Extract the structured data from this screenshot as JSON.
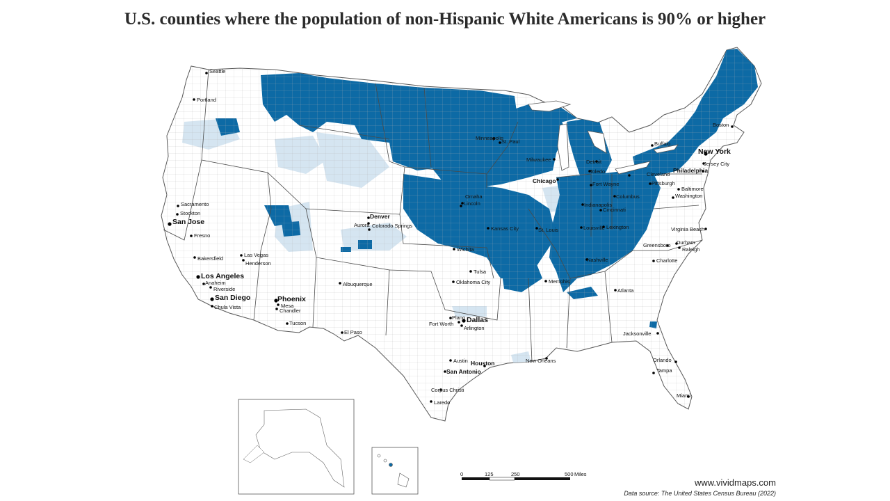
{
  "title": "U.S. counties where the population of non-Hispanic White Americans is 90% or higher",
  "colors": {
    "highlight": "#0d6aa5",
    "light": "#d5e5f1",
    "land": "#ffffff",
    "border": "#8a8a8a",
    "state_border": "#555555"
  },
  "cities": [
    {
      "name": "Seattle",
      "size": "small"
    },
    {
      "name": "Portland",
      "size": "small"
    },
    {
      "name": "Sacramento",
      "size": "small"
    },
    {
      "name": "Stockton",
      "size": "small"
    },
    {
      "name": "San Jose",
      "size": "big"
    },
    {
      "name": "Fresno",
      "size": "small"
    },
    {
      "name": "Bakersfield",
      "size": "small"
    },
    {
      "name": "Las Vegas",
      "size": "small"
    },
    {
      "name": "Henderson",
      "size": "small"
    },
    {
      "name": "Los Angeles",
      "size": "big"
    },
    {
      "name": "Anaheim",
      "size": "small"
    },
    {
      "name": "Riverside",
      "size": "small"
    },
    {
      "name": "San Diego",
      "size": "big"
    },
    {
      "name": "Chula Vista",
      "size": "small"
    },
    {
      "name": "Phoenix",
      "size": "big"
    },
    {
      "name": "Mesa",
      "size": "small"
    },
    {
      "name": "Chandler",
      "size": "small"
    },
    {
      "name": "Tucson",
      "size": "small"
    },
    {
      "name": "Albuquerque",
      "size": "small"
    },
    {
      "name": "El Paso",
      "size": "small"
    },
    {
      "name": "Denver",
      "size": "mid"
    },
    {
      "name": "Aurora",
      "size": "small"
    },
    {
      "name": "Colorado Springs",
      "size": "small"
    },
    {
      "name": "Omaha",
      "size": "small"
    },
    {
      "name": "Lincoln",
      "size": "small"
    },
    {
      "name": "Wichita",
      "size": "small"
    },
    {
      "name": "Kansas City",
      "size": "small"
    },
    {
      "name": "Tulsa",
      "size": "small"
    },
    {
      "name": "Oklahoma City",
      "size": "small"
    },
    {
      "name": "Plano",
      "size": "small"
    },
    {
      "name": "Dallas",
      "size": "big"
    },
    {
      "name": "Fort Worth",
      "size": "small"
    },
    {
      "name": "Arlington",
      "size": "small"
    },
    {
      "name": "Austin",
      "size": "small"
    },
    {
      "name": "Houston",
      "size": "mid"
    },
    {
      "name": "San Antonio",
      "size": "mid"
    },
    {
      "name": "Corpus Christi",
      "size": "small"
    },
    {
      "name": "Laredo",
      "size": "small"
    },
    {
      "name": "Minneapolis",
      "size": "small"
    },
    {
      "name": "St. Paul",
      "size": "small"
    },
    {
      "name": "Milwaukee",
      "size": "small"
    },
    {
      "name": "Chicago",
      "size": "mid"
    },
    {
      "name": "St. Louis",
      "size": "small"
    },
    {
      "name": "Memphis",
      "size": "small"
    },
    {
      "name": "New Orleans",
      "size": "small"
    },
    {
      "name": "Detroit",
      "size": "small"
    },
    {
      "name": "Toledo",
      "size": "small"
    },
    {
      "name": "Fort Wayne",
      "size": "small"
    },
    {
      "name": "Indianapolis",
      "size": "small"
    },
    {
      "name": "Cincinnati",
      "size": "small"
    },
    {
      "name": "Columbus",
      "size": "small"
    },
    {
      "name": "Cleveland",
      "size": "small"
    },
    {
      "name": "Pittsburgh",
      "size": "small"
    },
    {
      "name": "Louisville",
      "size": "small"
    },
    {
      "name": "Lexington",
      "size": "small"
    },
    {
      "name": "Nashville",
      "size": "small"
    },
    {
      "name": "Atlanta",
      "size": "small"
    },
    {
      "name": "Charlotte",
      "size": "small"
    },
    {
      "name": "Greensboro",
      "size": "small"
    },
    {
      "name": "Durham",
      "size": "small"
    },
    {
      "name": "Raleigh",
      "size": "small"
    },
    {
      "name": "Virginia Beach",
      "size": "small"
    },
    {
      "name": "Washington",
      "size": "small"
    },
    {
      "name": "Baltimore",
      "size": "small"
    },
    {
      "name": "Philadelphia",
      "size": "mid"
    },
    {
      "name": "New York",
      "size": "big"
    },
    {
      "name": "Jersey City",
      "size": "small"
    },
    {
      "name": "Buffalo",
      "size": "small"
    },
    {
      "name": "Boston",
      "size": "small"
    },
    {
      "name": "Jacksonville",
      "size": "small"
    },
    {
      "name": "Orlando",
      "size": "small"
    },
    {
      "name": "Tampa",
      "size": "small"
    },
    {
      "name": "Miami",
      "size": "small"
    }
  ],
  "scale_bar": {
    "labels": [
      "0",
      "125",
      "250",
      "500"
    ],
    "unit": "Miles"
  },
  "website": "www.vividmaps.com",
  "source": "Data source: The United States Census Bureau (2022)"
}
